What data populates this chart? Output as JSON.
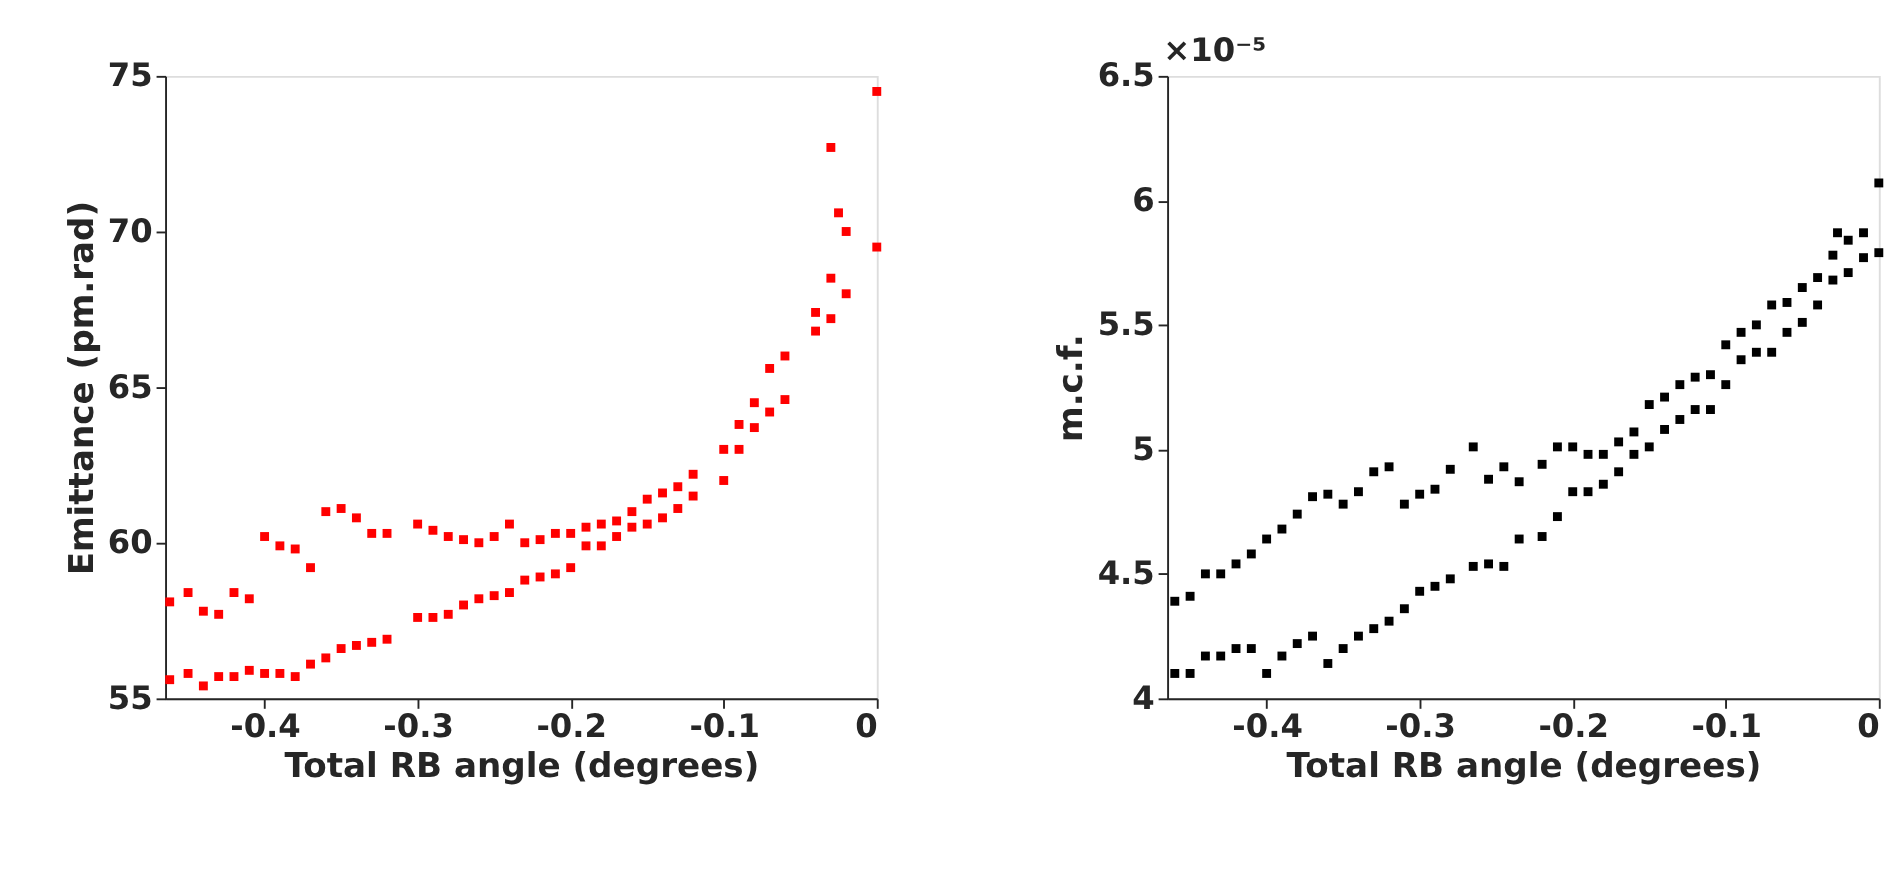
{
  "chart_data": [
    {
      "type": "scatter",
      "xlabel": "Total RB angle (degrees)",
      "ylabel": "Emittance (pm.rad)",
      "marker": "square",
      "grid": false,
      "xlim": [
        -0.465,
        0
      ],
      "ylim": [
        55,
        75
      ],
      "xticks": [
        {
          "value": -0.4,
          "label": "-0.4"
        },
        {
          "value": -0.3,
          "label": "-0.3"
        },
        {
          "value": -0.2,
          "label": "-0.2"
        },
        {
          "value": -0.1,
          "label": "-0.1"
        },
        0
      ],
      "yticks": [
        55,
        60,
        65,
        70,
        75
      ],
      "series": [
        {
          "color": "#ff0000",
          "x": [
            -0.462,
            -0.462,
            -0.45,
            -0.45,
            -0.44,
            -0.44,
            -0.43,
            -0.43,
            -0.42,
            -0.42,
            -0.41,
            -0.41,
            -0.4,
            -0.4,
            -0.39,
            -0.39,
            -0.38,
            -0.38,
            -0.37,
            -0.37,
            -0.36,
            -0.36,
            -0.35,
            -0.35,
            -0.34,
            -0.34,
            -0.33,
            -0.33,
            -0.32,
            -0.32,
            -0.3,
            -0.3,
            -0.29,
            -0.29,
            -0.28,
            -0.28,
            -0.27,
            -0.27,
            -0.26,
            -0.26,
            -0.25,
            -0.25,
            -0.24,
            -0.24,
            -0.23,
            -0.23,
            -0.22,
            -0.22,
            -0.21,
            -0.21,
            -0.2,
            -0.2,
            -0.19,
            -0.19,
            -0.18,
            -0.18,
            -0.17,
            -0.17,
            -0.16,
            -0.16,
            -0.15,
            -0.15,
            -0.14,
            -0.14,
            -0.13,
            -0.13,
            -0.12,
            -0.12,
            -0.1,
            -0.1,
            -0.09,
            -0.09,
            -0.08,
            -0.08,
            -0.07,
            -0.07,
            -0.06,
            -0.06,
            -0.04,
            -0.04,
            -0.03,
            -0.03,
            -0.02,
            -0.02,
            0,
            0,
            -0.03,
            -0.025
          ],
          "values": [
            55.6,
            58.1,
            55.8,
            58.4,
            55.4,
            57.8,
            55.7,
            57.7,
            55.7,
            58.4,
            55.9,
            58.2,
            55.8,
            60.2,
            55.8,
            59.9,
            55.7,
            59.8,
            56.1,
            59.2,
            56.3,
            61.0,
            56.6,
            61.1,
            56.7,
            60.8,
            56.8,
            60.3,
            56.9,
            60.3,
            57.6,
            60.6,
            57.6,
            60.4,
            57.7,
            60.2,
            58.0,
            60.1,
            58.2,
            60.0,
            58.3,
            60.2,
            58.4,
            60.6,
            58.8,
            60.0,
            58.9,
            60.1,
            59.0,
            60.3,
            59.2,
            60.3,
            59.9,
            60.5,
            59.9,
            60.6,
            60.2,
            60.7,
            60.5,
            61.0,
            60.6,
            61.4,
            60.8,
            61.6,
            61.1,
            61.8,
            61.5,
            62.2,
            62.0,
            63.0,
            63.0,
            63.8,
            63.7,
            64.5,
            64.2,
            65.6,
            64.6,
            66.0,
            66.8,
            67.4,
            67.2,
            68.5,
            68.0,
            70.0,
            69.5,
            74.5,
            72.7,
            70.6
          ]
        }
      ]
    },
    {
      "type": "scatter",
      "xlabel": "Total RB angle (degrees)",
      "ylabel": "m.c.f.",
      "marker": "square",
      "grid": false,
      "annotations": [
        "×10⁻⁵"
      ],
      "xlim": [
        -0.465,
        0
      ],
      "ylim": [
        4,
        6.5
      ],
      "xticks": [
        {
          "value": -0.4,
          "label": "-0.4"
        },
        {
          "value": -0.3,
          "label": "-0.3"
        },
        {
          "value": -0.2,
          "label": "-0.2"
        },
        {
          "value": -0.1,
          "label": "-0.1"
        },
        0
      ],
      "yticks": [
        4,
        4.5,
        5,
        5.5,
        6,
        6.5
      ],
      "series": [
        {
          "color": "#000000",
          "x": [
            -0.46,
            -0.46,
            -0.45,
            -0.45,
            -0.44,
            -0.44,
            -0.43,
            -0.43,
            -0.42,
            -0.42,
            -0.41,
            -0.41,
            -0.4,
            -0.4,
            -0.39,
            -0.39,
            -0.38,
            -0.38,
            -0.37,
            -0.37,
            -0.36,
            -0.36,
            -0.35,
            -0.35,
            -0.34,
            -0.34,
            -0.33,
            -0.33,
            -0.32,
            -0.32,
            -0.31,
            -0.31,
            -0.3,
            -0.3,
            -0.29,
            -0.29,
            -0.28,
            -0.28,
            -0.265,
            -0.265,
            -0.255,
            -0.255,
            -0.245,
            -0.245,
            -0.235,
            -0.235,
            -0.22,
            -0.22,
            -0.21,
            -0.21,
            -0.2,
            -0.2,
            -0.19,
            -0.19,
            -0.18,
            -0.18,
            -0.17,
            -0.17,
            -0.16,
            -0.16,
            -0.15,
            -0.15,
            -0.14,
            -0.14,
            -0.13,
            -0.13,
            -0.12,
            -0.12,
            -0.11,
            -0.11,
            -0.1,
            -0.1,
            -0.09,
            -0.09,
            -0.08,
            -0.08,
            -0.07,
            -0.07,
            -0.06,
            -0.06,
            -0.05,
            -0.05,
            -0.04,
            -0.04,
            -0.03,
            -0.03,
            -0.02,
            -0.02,
            -0.01,
            -0.01,
            0,
            0,
            -0.027
          ],
          "values": [
            4.39,
            4.1,
            4.41,
            4.1,
            4.5,
            4.17,
            4.5,
            4.17,
            4.54,
            4.2,
            4.58,
            4.2,
            4.64,
            4.1,
            4.68,
            4.17,
            4.74,
            4.22,
            4.81,
            4.25,
            4.82,
            4.14,
            4.78,
            4.2,
            4.83,
            4.25,
            4.91,
            4.28,
            4.93,
            4.31,
            4.78,
            4.36,
            4.82,
            4.43,
            4.84,
            4.45,
            4.92,
            4.48,
            5.01,
            4.53,
            4.88,
            4.54,
            4.93,
            4.53,
            4.87,
            4.64,
            4.94,
            4.65,
            5.01,
            4.73,
            5.01,
            4.83,
            4.98,
            4.83,
            4.98,
            4.86,
            5.03,
            4.91,
            5.07,
            4.98,
            5.18,
            5.01,
            5.21,
            5.08,
            5.26,
            5.12,
            5.29,
            5.16,
            5.3,
            5.16,
            5.42,
            5.26,
            5.47,
            5.36,
            5.5,
            5.39,
            5.58,
            5.39,
            5.59,
            5.47,
            5.65,
            5.51,
            5.69,
            5.58,
            5.78,
            5.68,
            5.84,
            5.71,
            5.87,
            5.77,
            6.07,
            5.79,
            5.87
          ]
        }
      ]
    }
  ]
}
